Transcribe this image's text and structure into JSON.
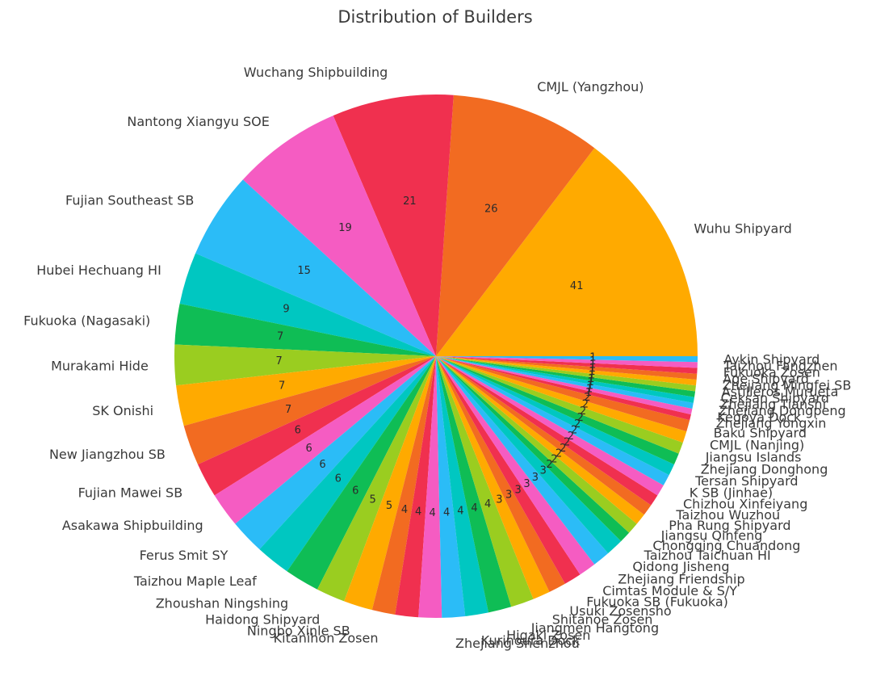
{
  "chart_data": {
    "type": "pie",
    "title": "Distribution of Builders",
    "start_angle_deg": 0,
    "direction": "counterclockwise",
    "slices": [
      {
        "label": "Wuhu Shipyard",
        "value": 41,
        "color": "#ffaa00"
      },
      {
        "label": "CMJL (Yangzhou)",
        "value": 26,
        "color": "#f26b21"
      },
      {
        "label": "Wuchang Shipbuilding",
        "value": 21,
        "color": "#f0304f"
      },
      {
        "label": "Nantong Xiangyu SOE",
        "value": 19,
        "color": "#f55cc2"
      },
      {
        "label": "Fujian Southeast SB",
        "value": 15,
        "color": "#2bbcf7"
      },
      {
        "label": "Hubei Hechuang HI",
        "value": 9,
        "color": "#00c7c1"
      },
      {
        "label": "Fukuoka (Nagasaki)",
        "value": 7,
        "color": "#0fbd55"
      },
      {
        "label": "Murakami Hide",
        "value": 7,
        "color": "#9acd20"
      },
      {
        "label": "SK Onishi",
        "value": 7,
        "color": "#ffaa00"
      },
      {
        "label": "New Jiangzhou SB",
        "value": 7,
        "color": "#f26b21"
      },
      {
        "label": "Fujian Mawei SB",
        "value": 6,
        "color": "#f0304f"
      },
      {
        "label": "Asakawa Shipbuilding",
        "value": 6,
        "color": "#f55cc2"
      },
      {
        "label": "Ferus Smit SY",
        "value": 6,
        "color": "#2bbcf7"
      },
      {
        "label": "Taizhou Maple Leaf",
        "value": 6,
        "color": "#00c7c1"
      },
      {
        "label": "Zhoushan Ningshing",
        "value": 6,
        "color": "#0fbd55"
      },
      {
        "label": "Haidong Shipyard",
        "value": 5,
        "color": "#9acd20"
      },
      {
        "label": "Ningbo Xinle SB",
        "value": 5,
        "color": "#ffaa00"
      },
      {
        "label": "Kitanihon Zosen",
        "value": 4,
        "color": "#f26b21"
      },
      {
        "label": "",
        "value": 4,
        "color": "#f0304f"
      },
      {
        "label": "",
        "value": 4,
        "color": "#f55cc2"
      },
      {
        "label": "Zhejiang Shenzhou",
        "value": 4,
        "color": "#2bbcf7"
      },
      {
        "label": "Kurinoura Dock",
        "value": 4,
        "color": "#00c7c1"
      },
      {
        "label": "Higaki Zosen",
        "value": 4,
        "color": "#0fbd55"
      },
      {
        "label": "Jiangmen Hangtong",
        "value": 4,
        "color": "#9acd20"
      },
      {
        "label": "Shitanoe Zosen",
        "value": 3,
        "color": "#ffaa00"
      },
      {
        "label": "Usuki Zosensho",
        "value": 3,
        "color": "#f26b21"
      },
      {
        "label": "Fukuoka SB (Fukuoka)",
        "value": 3,
        "color": "#f0304f"
      },
      {
        "label": "Cimtas Module & S/Y",
        "value": 3,
        "color": "#f55cc2"
      },
      {
        "label": "Zhejiang Friendship",
        "value": 3,
        "color": "#2bbcf7"
      },
      {
        "label": "Qidong Jisheng",
        "value": 3,
        "color": "#00c7c1"
      },
      {
        "label": "Taizhou Taichuan HI",
        "value": 2,
        "color": "#0fbd55"
      },
      {
        "label": "Chongqing Chuandong",
        "value": 2,
        "color": "#9acd20"
      },
      {
        "label": "Jiangsu Qinfeng",
        "value": 2,
        "color": "#ffaa00"
      },
      {
        "label": "Pha Rung Shipyard",
        "value": 2,
        "color": "#f26b21"
      },
      {
        "label": "Taizhou Wuzhou",
        "value": 2,
        "color": "#f0304f"
      },
      {
        "label": "Chizhou Xinfeiyang",
        "value": 2,
        "color": "#f55cc2"
      },
      {
        "label": "K SB (Jinhae)",
        "value": 2,
        "color": "#2bbcf7"
      },
      {
        "label": "Tersan Shipyard",
        "value": 2,
        "color": "#00c7c1"
      },
      {
        "label": "Zhejiang Donghong",
        "value": 2,
        "color": "#0fbd55"
      },
      {
        "label": "Jiangsu Islands",
        "value": 2,
        "color": "#9acd20"
      },
      {
        "label": "CMJL (Nanjing)",
        "value": 2,
        "color": "#ffaa00"
      },
      {
        "label": "Baku Shipyard",
        "value": 2,
        "color": "#f26b21"
      },
      {
        "label": "Zhejiang Yongxin",
        "value": 1,
        "color": "#f0304f"
      },
      {
        "label": "Kegoya Dock",
        "value": 1,
        "color": "#f55cc2"
      },
      {
        "label": "Zhejiang Dongpeng",
        "value": 1,
        "color": "#2bbcf7"
      },
      {
        "label": "Zhejiang Tianshi",
        "value": 1,
        "color": "#00c7c1"
      },
      {
        "label": "Ceksan Shipyard",
        "value": 1,
        "color": "#0fbd55"
      },
      {
        "label": "Astilleros Murueta",
        "value": 1,
        "color": "#9acd20"
      },
      {
        "label": "Zhejiang Mingfei SB",
        "value": 1,
        "color": "#ffaa00"
      },
      {
        "label": "Age Shipyard",
        "value": 1,
        "color": "#f26b21"
      },
      {
        "label": "Fukuoka Zosen",
        "value": 1,
        "color": "#f0304f"
      },
      {
        "label": "Taizhou Fangzhen",
        "value": 1,
        "color": "#f55cc2"
      },
      {
        "label": "Aykin Shipyard",
        "value": 1,
        "color": "#2bbcf7"
      }
    ]
  }
}
